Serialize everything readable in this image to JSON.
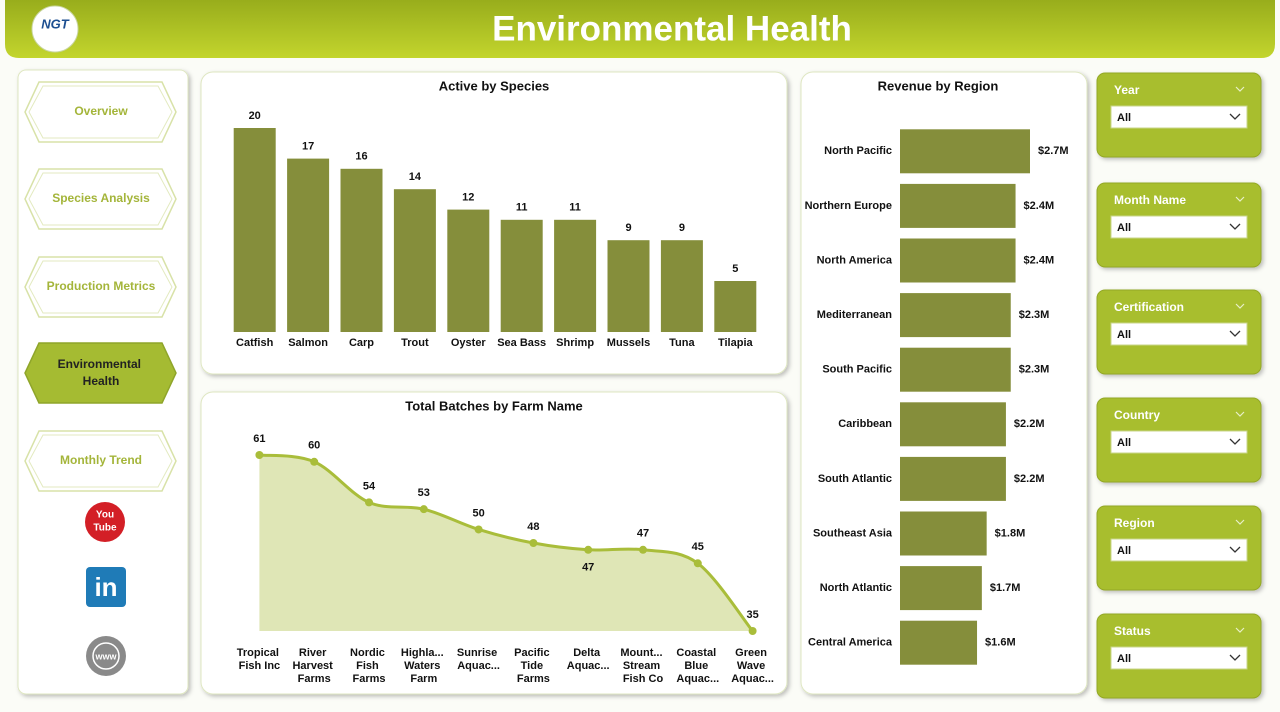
{
  "header": {
    "title": "Environmental Health",
    "logo": "NGT"
  },
  "nav": {
    "items": [
      "Overview",
      "Species Analysis",
      "Production Metrics",
      "Environmental Health",
      "Monthly Trend"
    ],
    "active": 3
  },
  "social": {
    "youtube": [
      "You",
      "Tube"
    ],
    "linkedin": "in",
    "web": "www"
  },
  "filters": [
    {
      "label": "Year",
      "value": "All"
    },
    {
      "label": "Month Name",
      "value": "All"
    },
    {
      "label": "Certification",
      "value": "All"
    },
    {
      "label": "Country",
      "value": "All"
    },
    {
      "label": "Region",
      "value": "All"
    },
    {
      "label": "Status",
      "value": "All"
    }
  ],
  "chart_data": [
    {
      "type": "bar",
      "title": "Active by Species",
      "color": "#858e3b",
      "categories": [
        "Catfish",
        "Salmon",
        "Carp",
        "Trout",
        "Oyster",
        "Sea Bass",
        "Shrimp",
        "Mussels",
        "Tuna",
        "Tilapia"
      ],
      "values": [
        20,
        17,
        16,
        14,
        12,
        11,
        11,
        9,
        9,
        5
      ]
    },
    {
      "type": "area",
      "title": "Total Batches by Farm Name",
      "color": "#a9bd3a",
      "fill": "#dfe6b6",
      "categories": [
        "Tropical Fish Inc",
        "River Harvest Farms",
        "Nordic Fish Farms",
        "Highla... Waters Farm",
        "Sunrise Aquac...",
        "Pacific Tide Farms",
        "Delta Aquac...",
        "Mount... Stream Fish Co",
        "Coastal Blue Aquac...",
        "Green Wave Aquac..."
      ],
      "values": [
        61,
        60,
        54,
        53,
        50,
        48,
        47,
        47,
        45,
        35
      ]
    },
    {
      "type": "bar",
      "orientation": "horizontal",
      "title": "Revenue by Region",
      "color": "#858e3b",
      "categories": [
        "North Pacific",
        "Northern Europe",
        "North America",
        "Mediterranean",
        "South Pacific",
        "Caribbean",
        "South Atlantic",
        "Southeast Asia",
        "North Atlantic",
        "Central America"
      ],
      "values": [
        2700000,
        2400000,
        2400000,
        2300000,
        2300000,
        2200000,
        2200000,
        1800000,
        1700000,
        1600000
      ],
      "value_labels": [
        "$2.7M",
        "$2.4M",
        "$2.4M",
        "$2.3M",
        "$2.3M",
        "$2.2M",
        "$2.2M",
        "$1.8M",
        "$1.7M",
        "$1.6M"
      ]
    }
  ]
}
